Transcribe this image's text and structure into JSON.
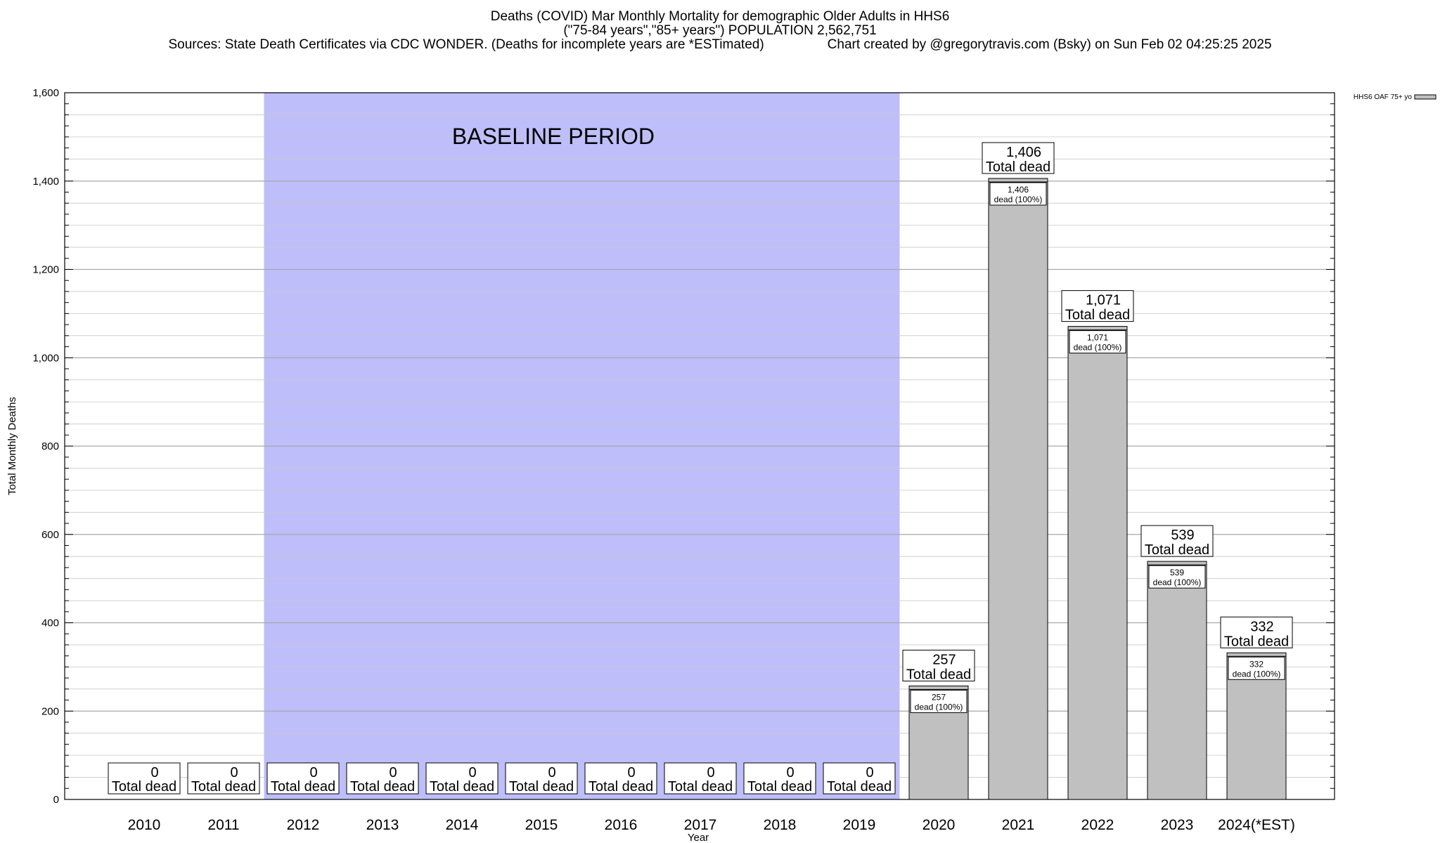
{
  "header": {
    "title": "Deaths (COVID) Mar Monthly Mortality for demographic Older Adults in HHS6",
    "subtitle": "(\"75-84 years\",\"85+ years\") POPULATION 2,562,751",
    "sources": "Sources: State Death Certificates via CDC WONDER. (Deaths for incomplete years are *ESTimated)",
    "credit": "Chart created by @gregorytravis.com (Bsky) on Sun Feb 02 04:25:25 2025"
  },
  "chart_data": {
    "type": "bar",
    "title": "Deaths (COVID) Mar Monthly Mortality for demographic Older Adults in HHS6",
    "xlabel": "Year",
    "ylabel": "Total Monthly Deaths",
    "ylim": [
      0,
      1600
    ],
    "ytick_labels": [
      "0",
      "200",
      "400",
      "600",
      "800",
      "1,000",
      "1,200",
      "1,400",
      "1,600"
    ],
    "grid": true,
    "legend_position": "top-right",
    "categories": [
      "2010",
      "2011",
      "2012",
      "2013",
      "2014",
      "2015",
      "2016",
      "2017",
      "2018",
      "2019",
      "2020",
      "2021",
      "2022",
      "2023",
      "2024(*EST)"
    ],
    "series": [
      {
        "name": "HHS6 OAF 75+ yo",
        "values": [
          0,
          0,
          0,
          0,
          0,
          0,
          0,
          0,
          0,
          0,
          257,
          1406,
          1071,
          539,
          332
        ]
      }
    ],
    "total_labels": [
      "0",
      "0",
      "0",
      "0",
      "0",
      "0",
      "0",
      "0",
      "0",
      "0",
      "257",
      "1,406",
      "1,071",
      "539",
      "332"
    ],
    "total_caption": "Total dead",
    "inner_caption": "dead (100%)",
    "baseline": {
      "label": "BASELINE PERIOD",
      "start": "2012",
      "end": "2019"
    },
    "colors": {
      "bar": "#c0c0c0",
      "baseline": "#bebefa",
      "grid": "#c8c8c8"
    }
  }
}
